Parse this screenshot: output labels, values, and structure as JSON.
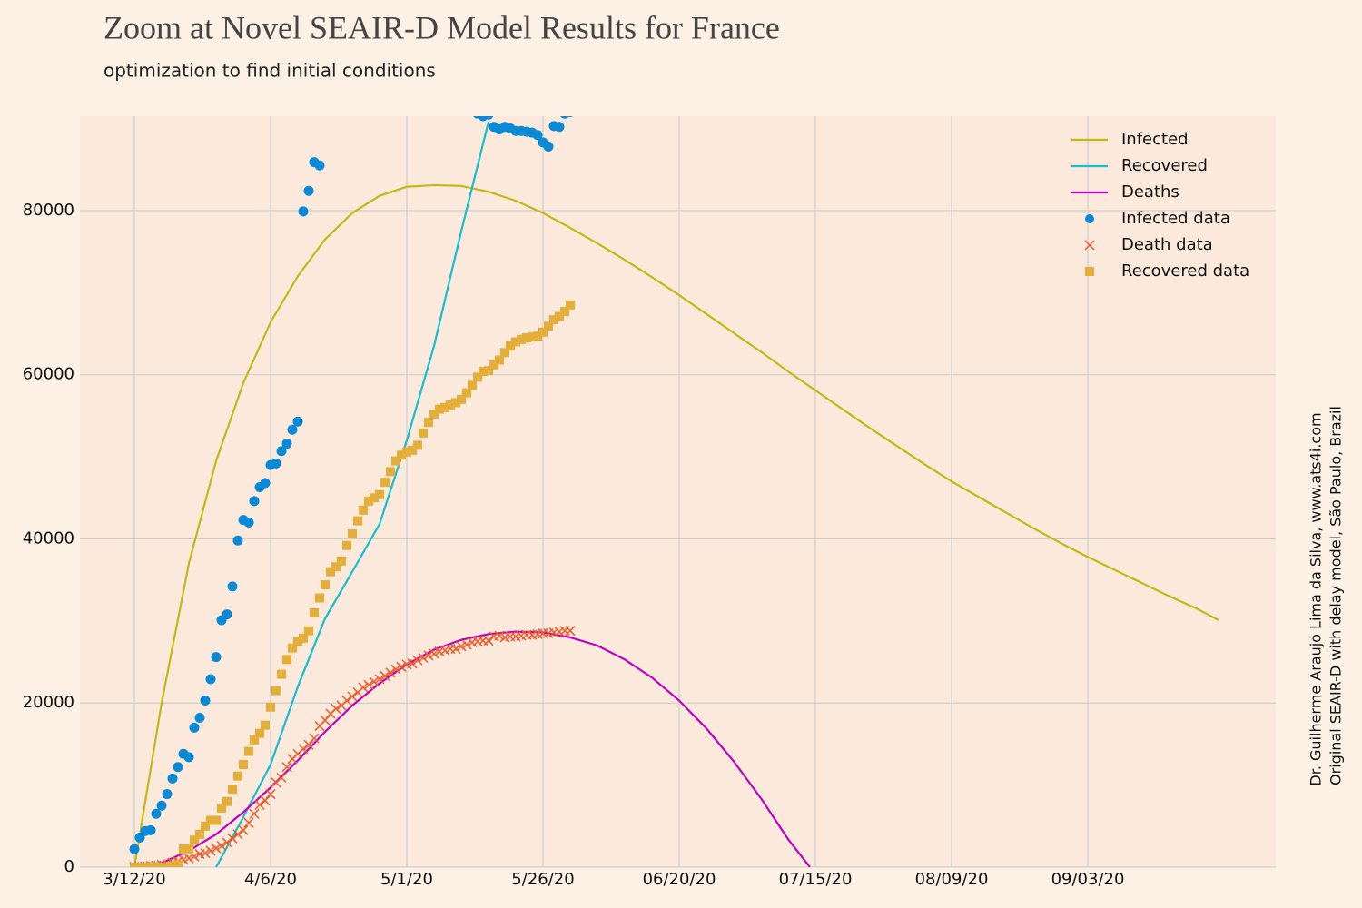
{
  "chart_data": {
    "type": "line",
    "title": "Zoom at Novel SEAIR-D Model Results for France",
    "subtitle": "optimization to find initial conditions",
    "annotations": [
      "Dr. Guilherme Araujo Lima da Silva, www.ats4i.com",
      "Original SEAIR-D with delay model, São Paulo, Brazil"
    ],
    "xlim": [
      -10,
      209.5
    ],
    "xticks": [
      {
        "value": 0,
        "label": "3/12/20"
      },
      {
        "value": 25,
        "label": "4/6/20"
      },
      {
        "value": 50,
        "label": "5/1/20"
      },
      {
        "value": 75,
        "label": "5/26/20"
      },
      {
        "value": 100,
        "label": "06/20/20"
      },
      {
        "value": 125,
        "label": "07/15/20"
      },
      {
        "value": 150,
        "label": "08/09/20"
      },
      {
        "value": 175,
        "label": "09/03/20"
      }
    ],
    "ylim": [
      0,
      91500
    ],
    "yticks": [
      0,
      20000,
      40000,
      60000,
      80000
    ],
    "grid": true,
    "legend": "upper right",
    "series": [
      {
        "name": "Infected",
        "type": "line",
        "color": "#c4b814",
        "x": [
          0,
          5,
          10,
          15,
          20,
          25,
          30,
          35,
          40,
          45,
          50,
          55,
          60,
          65,
          70,
          75,
          80,
          85,
          90,
          95,
          100,
          105,
          110,
          115,
          120,
          125,
          130,
          135,
          140,
          145,
          150,
          155,
          160,
          165,
          170,
          175,
          180,
          185,
          190,
          195,
          199
        ],
        "values": [
          0,
          20000,
          37000,
          49500,
          59000,
          66400,
          72000,
          76500,
          79700,
          81800,
          82900,
          83100,
          83000,
          82300,
          81200,
          79700,
          77900,
          76000,
          74000,
          71900,
          69700,
          67400,
          65100,
          62800,
          60400,
          58100,
          55800,
          53500,
          51300,
          49100,
          47000,
          45100,
          43200,
          41300,
          39500,
          37800,
          36200,
          34600,
          33000,
          31500,
          30100
        ]
      },
      {
        "name": "Recovered",
        "type": "line",
        "color": "#17becf",
        "x": [
          15,
          20,
          25,
          30,
          35,
          40,
          45,
          50,
          55,
          60,
          65
        ],
        "values": [
          0,
          6100,
          12500,
          22000,
          30300,
          36000,
          41800,
          52000,
          63500,
          77500,
          90800
        ]
      },
      {
        "name": "Deaths",
        "type": "line",
        "color": "#c000c0",
        "x": [
          2,
          5,
          10,
          15,
          20,
          25,
          30,
          35,
          40,
          45,
          50,
          55,
          60,
          65,
          70,
          75,
          80,
          85,
          90,
          95,
          100,
          105,
          110,
          115,
          120,
          124
        ],
        "values": [
          0,
          500,
          2000,
          4000,
          6700,
          9700,
          13000,
          16500,
          19700,
          22400,
          24700,
          26500,
          27700,
          28400,
          28700,
          28600,
          28000,
          27000,
          25300,
          23100,
          20300,
          16900,
          12900,
          8400,
          3400,
          0
        ]
      },
      {
        "name": "Infected data",
        "type": "scatter",
        "marker": "circle",
        "color": "#0a8ad6",
        "x": [
          0,
          1,
          2,
          3,
          4,
          5,
          6,
          7,
          8,
          9,
          10,
          11,
          12,
          13,
          14,
          15,
          16,
          17,
          18,
          19,
          20,
          21,
          22,
          23,
          24,
          25,
          26,
          27,
          28,
          29,
          30,
          31,
          32,
          33,
          34,
          63,
          64,
          65,
          66,
          67,
          68,
          69,
          70,
          71,
          72,
          73,
          74,
          75,
          76,
          77,
          78,
          79,
          80
        ],
        "values": [
          2200,
          3600,
          4400,
          4500,
          6500,
          7500,
          8900,
          10800,
          12200,
          13800,
          13400,
          17000,
          18200,
          20300,
          22900,
          25600,
          30100,
          30800,
          34200,
          39800,
          42300,
          42000,
          44600,
          46300,
          46800,
          49000,
          49200,
          50700,
          51600,
          53300,
          54300,
          79900,
          82400,
          85900,
          85500,
          91800,
          91500,
          91700,
          90200,
          89900,
          90200,
          90000,
          89700,
          89700,
          89600,
          89500,
          89200,
          88300,
          87800,
          90300,
          90200,
          91800,
          92000
        ]
      },
      {
        "name": "Death data",
        "type": "scatter",
        "marker": "x",
        "color": "#f05a28",
        "x": [
          0,
          1,
          2,
          3,
          4,
          5,
          6,
          7,
          8,
          9,
          10,
          11,
          12,
          13,
          14,
          15,
          16,
          17,
          18,
          19,
          20,
          21,
          22,
          23,
          24,
          25,
          26,
          27,
          28,
          29,
          30,
          31,
          32,
          33,
          34,
          35,
          36,
          37,
          38,
          39,
          40,
          41,
          42,
          43,
          44,
          45,
          46,
          47,
          48,
          49,
          50,
          51,
          52,
          53,
          54,
          55,
          56,
          57,
          58,
          59,
          60,
          61,
          62,
          63,
          64,
          65,
          66,
          67,
          68,
          69,
          70,
          71,
          72,
          73,
          74,
          75,
          76,
          77,
          78,
          79,
          80
        ],
        "values": [
          50,
          80,
          100,
          150,
          200,
          300,
          400,
          550,
          700,
          900,
          1100,
          1300,
          1600,
          1700,
          2000,
          2300,
          2600,
          3000,
          3500,
          4000,
          4500,
          5400,
          6500,
          7600,
          8100,
          8900,
          10300,
          10900,
          12200,
          13200,
          13800,
          14400,
          14900,
          15700,
          17200,
          17900,
          18700,
          19300,
          19700,
          20300,
          20800,
          21300,
          21900,
          22200,
          22600,
          22900,
          23300,
          23700,
          24100,
          24400,
          24700,
          24800,
          25200,
          25500,
          25800,
          26000,
          26300,
          26400,
          26600,
          26600,
          26900,
          27100,
          27400,
          27500,
          27600,
          27600,
          28100,
          28200,
          28000,
          28100,
          28100,
          28200,
          28300,
          28300,
          28400,
          28500,
          28500,
          28600,
          28700,
          28800,
          28800
        ]
      },
      {
        "name": "Recovered data",
        "type": "scatter",
        "marker": "square",
        "color": "#e5ae38",
        "x": [
          0,
          1,
          2,
          3,
          4,
          5,
          6,
          7,
          8,
          9,
          10,
          11,
          12,
          13,
          14,
          15,
          16,
          17,
          18,
          19,
          20,
          21,
          22,
          23,
          24,
          25,
          26,
          27,
          28,
          29,
          30,
          31,
          32,
          33,
          34,
          35,
          36,
          37,
          38,
          39,
          40,
          41,
          42,
          43,
          44,
          45,
          46,
          47,
          48,
          49,
          50,
          51,
          52,
          53,
          54,
          55,
          56,
          57,
          58,
          59,
          60,
          61,
          62,
          63,
          64,
          65,
          66,
          67,
          68,
          69,
          70,
          71,
          72,
          73,
          74,
          75,
          76,
          77,
          78,
          79,
          80
        ],
        "values": [
          0,
          0,
          0,
          0,
          0,
          0,
          0,
          100,
          300,
          2200,
          2200,
          3300,
          4000,
          5000,
          5700,
          5700,
          7200,
          8000,
          9500,
          11100,
          12500,
          14100,
          15500,
          16300,
          17300,
          19500,
          21500,
          23500,
          25300,
          26700,
          27500,
          27900,
          28800,
          31000,
          32800,
          34400,
          36000,
          36600,
          37300,
          39200,
          40600,
          42200,
          43500,
          44600,
          45000,
          45400,
          46900,
          48200,
          49500,
          50200,
          50600,
          50800,
          51400,
          52900,
          54200,
          55200,
          55800,
          56000,
          56300,
          56600,
          57000,
          57800,
          58700,
          59700,
          60400,
          60500,
          61200,
          61800,
          62700,
          63500,
          64000,
          64300,
          64500,
          64600,
          64700,
          65200,
          65900,
          66700,
          67100,
          67700,
          68500
        ]
      }
    ]
  }
}
